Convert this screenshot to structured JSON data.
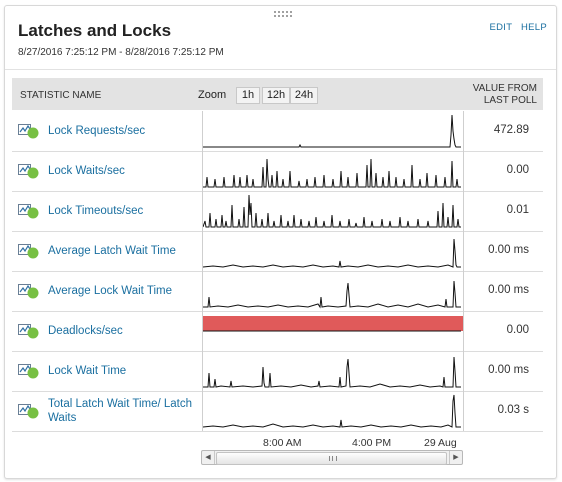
{
  "widget": {
    "title": "Latches and Locks",
    "date_range": "8/27/2016 7:25:12 PM - 8/28/2016 7:25:12 PM",
    "edit_label": "EDIT",
    "help_label": "HELP"
  },
  "table": {
    "col_statistic": "STATISTIC NAME",
    "zoom_label": "Zoom",
    "zoom_options": [
      "1h",
      "12h",
      "24h"
    ],
    "col_value_line1": "VALUE FROM",
    "col_value_line2": "LAST POLL"
  },
  "rows": [
    {
      "label": "Lock Requests/sec",
      "value": "472.89",
      "sparkline": "0,36 82,36 96,36 97,34 98,36 247,36 248,24 249,4 250,20 251,28 252,34 253,36 258,36"
    },
    {
      "label": "Lock Waits/sec",
      "value": "0.00",
      "sparkline": "0,36 3,36 4,26 5,36 11,36 12,28 13,36 20,36 21,26 22,36 30,36 31,24 32,36 36,36 37,26 38,36 43,36 44,24 45,36 49,36 50,28 51,36 59,36 60,16 61,36 63,36 64,8 65,28 66,36 68,36 69,24 70,36 73,36 74,20 75,36 79,36 80,28 81,36 86,36 87,20 88,36 95,36 96,30 97,36 103,36 104,28 105,36 111,36 112,26 113,36 120,36 121,24 122,36 129,36 130,28 131,36 137,36 138,20 139,36 144,36 145,26 146,36 153,36 154,22 155,36 163,36 164,14 165,36 167,36 168,8 169,36 172,36 173,22 174,36 179,36 180,26 181,36 185,36 186,20 187,36 192,36 193,26 194,36 200,36 201,28 202,36 208,36 209,14 210,36 216,36 217,28 218,36 223,36 224,22 225,36 232,36 233,24 234,36 241,36 242,26 243,36 248,36 249,10 250,36 253,36 254,28 255,36 258,36"
    },
    {
      "label": "Lock Timeouts/sec",
      "value": "0.01",
      "sparkline": "0,36 2,30 3,36 6,36 7,22 8,36 12,36 13,28 14,36 18,36 19,24 20,36 22,36 23,30 24,36 28,36 29,14 30,36 35,36 36,28 37,36 40,36 41,16 42,36 45,36 46,4 47,24 48,12 49,36 52,36 53,22 54,36 58,36 59,28 60,36 64,36 65,22 66,36 70,36 71,30 72,36 77,36 78,24 79,36 84,36 85,30 86,36 90,36 91,24 92,36 97,36 98,28 99,36 105,36 106,30 107,36 112,36 113,26 114,36 120,36 121,30 122,36 128,36 129,24 130,36 136,36 137,30 138,36 145,36 146,28 147,36 152,36 153,32 154,36 160,36 161,26 162,36 168,36 169,30 170,36 178,36 179,28 180,36 186,36 187,30 188,36 196,36 197,26 198,36 204,36 205,30 206,36 214,36 215,28 216,36 224,36 225,30 226,36 234,36 235,20 236,36 239,36 240,12 241,36 244,36 245,26 246,36 249,36 250,14 251,36 254,36 255,28 256,36 258,36"
    },
    {
      "label": "Average Latch Wait Time",
      "value": "0.00 ms",
      "sparkline": "0,36 10,35 20,36 30,34 40,36 50,35 60,36 70,34 80,36 90,35 100,36 110,34 120,36 130,35 136,36 137,30 138,36 145,35 155,36 165,34 175,36 185,35 195,36 205,34 215,36 225,35 235,36 245,34 250,36 251,8 252,20 253,34 254,36 258,36"
    },
    {
      "label": "Average Lock Wait Time",
      "value": "0.00 ms",
      "sparkline": "0,36 5,36 6,26 7,36 15,35 25,36 35,34 45,36 55,35 65,36 75,34 85,36 95,35 105,36 115,33 117,36 118,26 119,36 125,35 135,36 143,35 144,20 145,12 146,24 147,36 155,35 165,36 175,33 185,36 195,34 205,36 215,33 225,36 235,34 242,36 243,28 244,36 250,36 251,10 252,22 253,36 258,36"
    },
    {
      "label": "Deadlocks/sec",
      "value": "0.00",
      "sparkline": "0,20 258,20"
    },
    {
      "label": "Lock Wait Time",
      "value": "0.00 ms",
      "sparkline": "0,36 5,36 6,22 7,36 11,36 12,28 13,36 18,35 27,36 28,30 29,36 40,35 50,36 59,35 60,16 61,32 62,36 66,36 67,22 68,36 78,35 88,36 98,34 108,36 115,35 116,30 117,36 127,35 136,36 137,26 138,36 143,35 144,16 145,8 146,22 147,36 157,35 167,36 177,33 187,36 197,35 207,36 217,34 227,36 237,35 240,36 241,26 242,36 250,36 251,6 252,20 253,36 258,36"
    },
    {
      "label": "Total Latch Wait Time/ Latch Waits",
      "value": "0.03 s",
      "sparkline": "0,36 10,35 20,36 30,34 40,36 50,35 60,36 70,33 80,36 90,35 100,36 110,34 120,36 130,35 137,36 138,29 139,36 148,35 158,36 168,34 178,36 188,35 198,36 208,34 218,36 228,35 238,36 245,34 249,36 250,10 251,4 252,22 253,36 258,36"
    }
  ],
  "time_axis": [
    "8:00 AM",
    "4:00 PM",
    "29 Aug"
  ],
  "colors": {
    "link": "#1a6fa0",
    "status_up": "#77c043",
    "deadlock_band": "#e05a5a",
    "header_bg": "#e3e3e3"
  }
}
